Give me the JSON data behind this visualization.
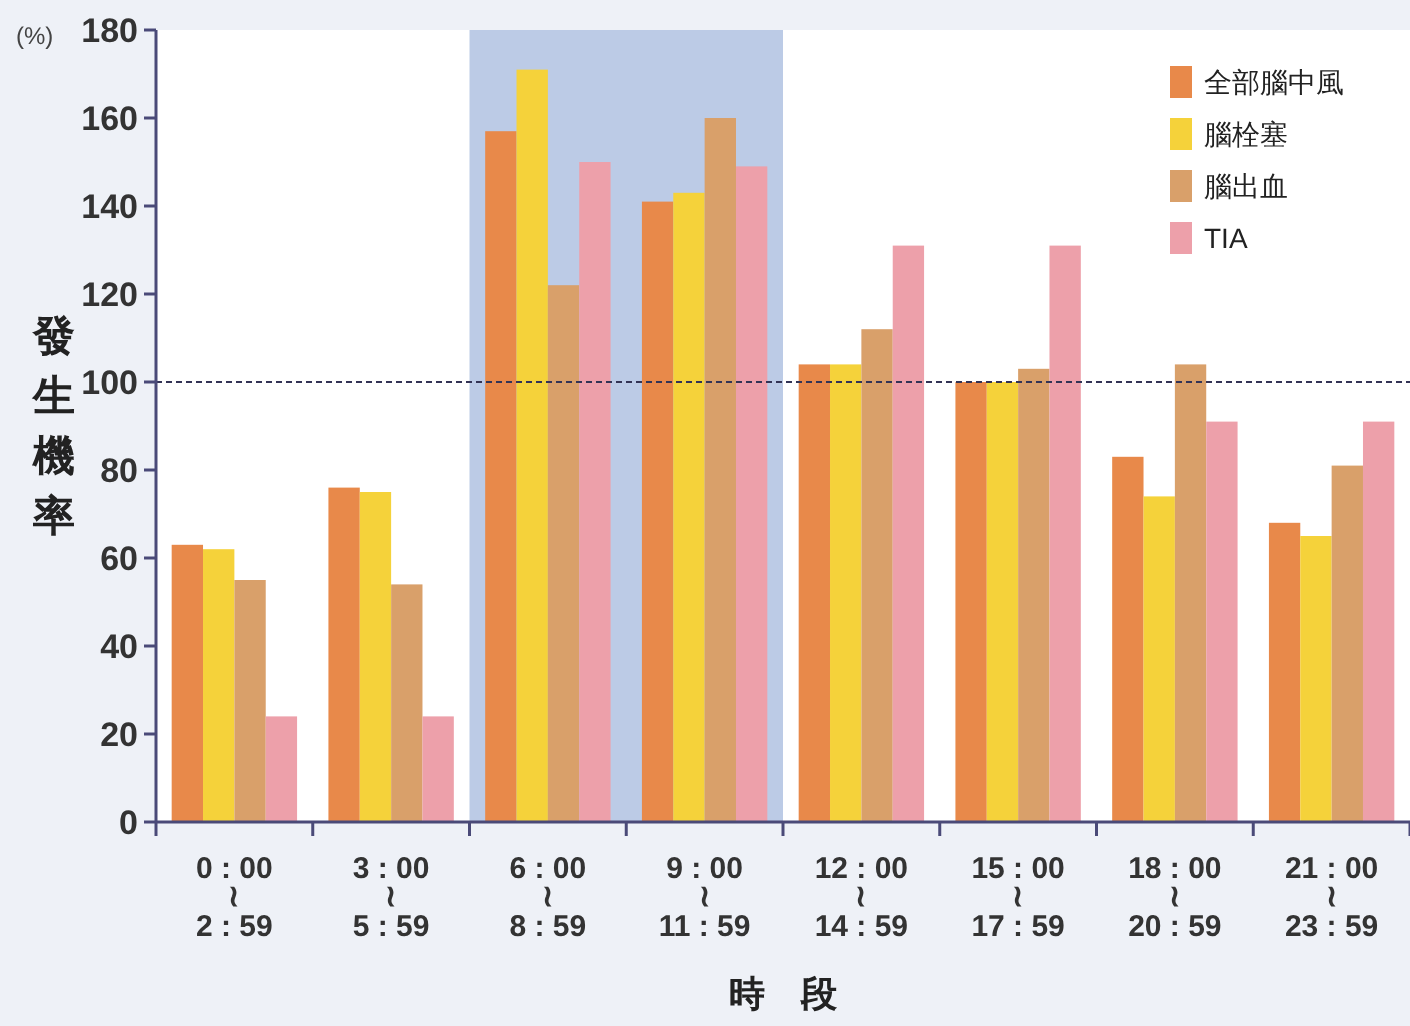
{
  "chart_data": {
    "type": "bar",
    "xlabel": "時　段",
    "ylabel": "發生機率",
    "annotations": [
      "(%)"
    ],
    "categories": [
      "0 : 00\n≀\n2 : 59",
      "3 : 00\n≀\n5 : 59",
      "6 : 00\n≀\n8 : 59",
      "9 : 00\n≀\n11 : 59",
      "12 : 00\n≀\n14 : 59",
      "15 : 00\n≀\n17 : 59",
      "18 : 00\n≀\n20 : 59",
      "21 : 00\n≀\n23 : 59"
    ],
    "series": [
      {
        "name": "全部腦中風",
        "color": "#e8894a",
        "values": [
          63,
          76,
          157,
          141,
          104,
          100,
          83,
          68
        ]
      },
      {
        "name": "腦栓塞",
        "color": "#f5d23a",
        "values": [
          62,
          75,
          171,
          143,
          104,
          100,
          74,
          65
        ]
      },
      {
        "name": "腦出血",
        "color": "#d9a06a",
        "values": [
          55,
          54,
          122,
          160,
          112,
          103,
          104,
          81
        ]
      },
      {
        "name": "TIA",
        "color": "#eda0aa",
        "values": [
          24,
          24,
          150,
          149,
          131,
          131,
          91,
          91
        ]
      }
    ],
    "ylim": [
      0,
      180
    ],
    "yticks": [
      0,
      20,
      40,
      60,
      80,
      100,
      120,
      140,
      160,
      180
    ],
    "ref_lines": [
      {
        "axis": "y",
        "value": 100,
        "line_style": "dashed",
        "color": "#333355"
      }
    ],
    "bands": [
      {
        "axis": "x",
        "from": "6 : 00\n≀\n8 : 59",
        "to": "9 : 00\n≀\n11 : 59",
        "color": "#bccbe6"
      }
    ],
    "grid": false,
    "legend": "top right"
  }
}
